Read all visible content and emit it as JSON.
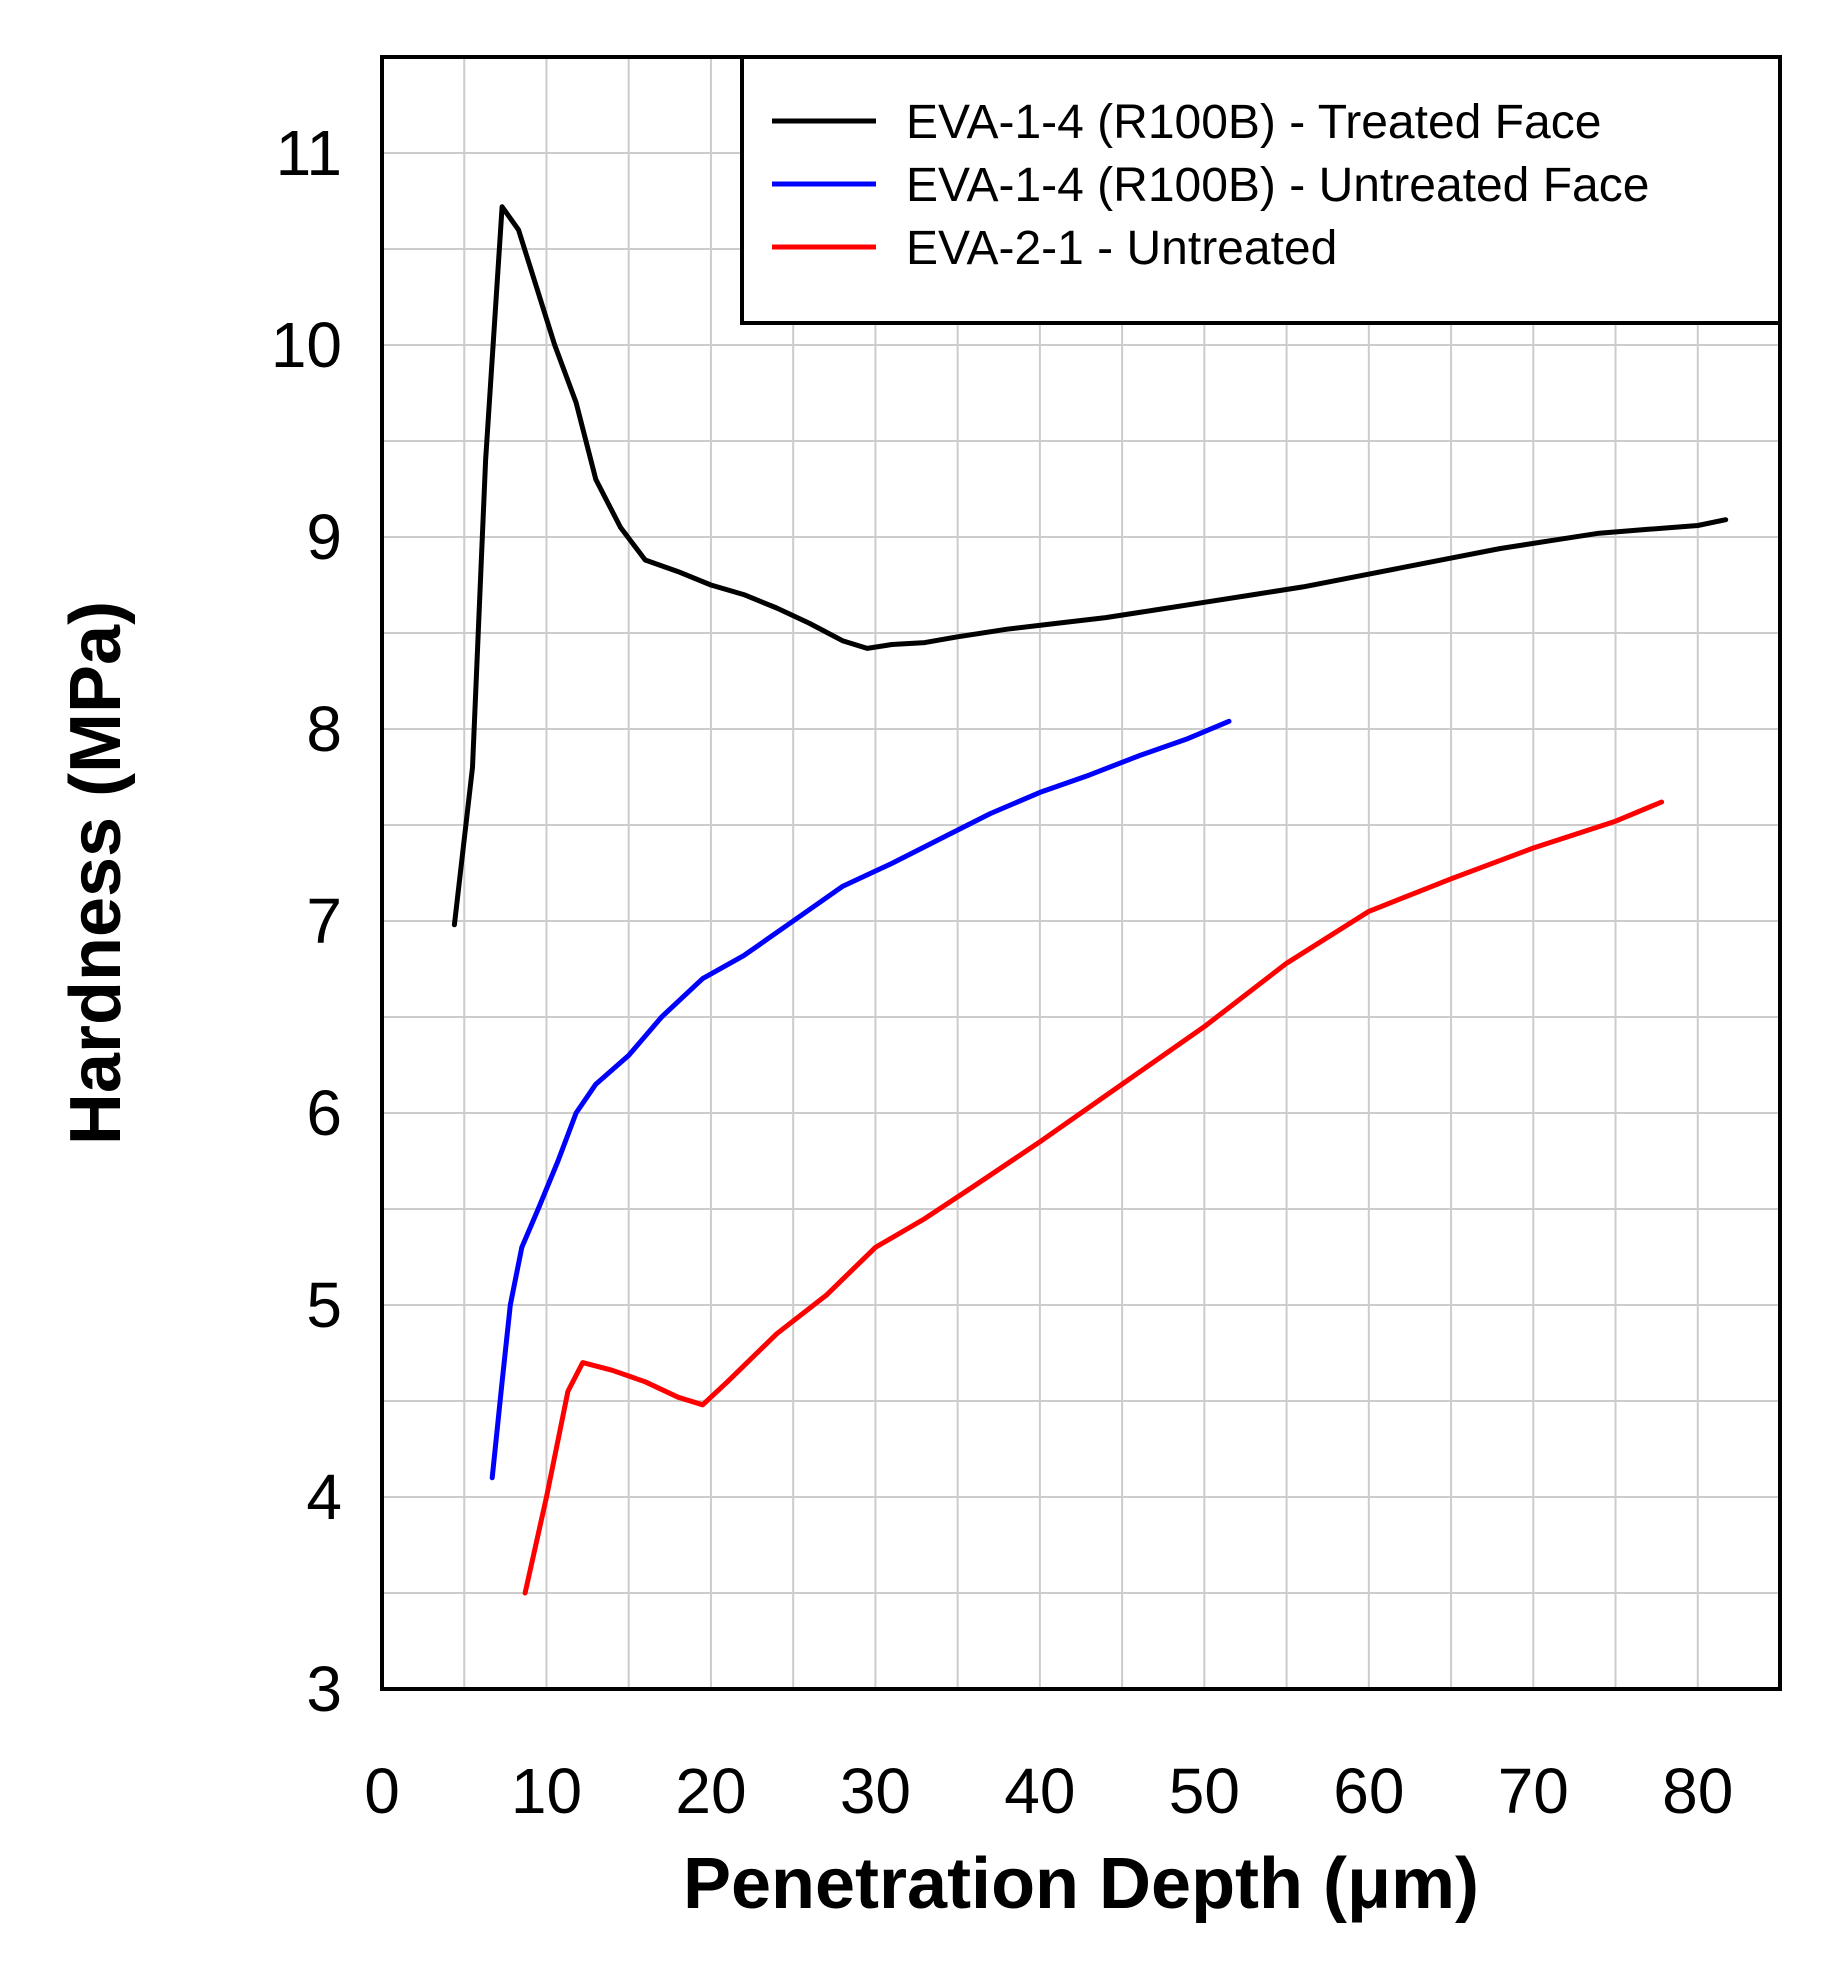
{
  "chart_data": {
    "type": "line",
    "title": "",
    "xlabel": "Penetration Depth  (μm)",
    "ylabel": "Hardness (MPa)",
    "xlim": [
      0,
      85
    ],
    "ylim": [
      3,
      11.5
    ],
    "xticks": [
      0,
      10,
      20,
      30,
      40,
      50,
      60,
      70,
      80
    ],
    "yticks": [
      3,
      4,
      5,
      6,
      7,
      8,
      9,
      10,
      11
    ],
    "x_minor_step": 5,
    "y_minor_step": 0.5,
    "grid": true,
    "legend_position": "top-right",
    "series": [
      {
        "name": "EVA-1-4 (R100B) - Treated Face",
        "color": "#000000",
        "points": [
          [
            4.4,
            6.98
          ],
          [
            5.5,
            7.8
          ],
          [
            6.3,
            9.4
          ],
          [
            7.3,
            10.72
          ],
          [
            8.3,
            10.6
          ],
          [
            9.4,
            10.3
          ],
          [
            10.5,
            10.0
          ],
          [
            11.8,
            9.7
          ],
          [
            13.0,
            9.3
          ],
          [
            14.5,
            9.05
          ],
          [
            16.0,
            8.88
          ],
          [
            18.0,
            8.82
          ],
          [
            20.0,
            8.75
          ],
          [
            22.0,
            8.7
          ],
          [
            24.0,
            8.63
          ],
          [
            26.0,
            8.55
          ],
          [
            28.0,
            8.46
          ],
          [
            29.5,
            8.42
          ],
          [
            31.0,
            8.44
          ],
          [
            33.0,
            8.45
          ],
          [
            35.0,
            8.48
          ],
          [
            38.0,
            8.52
          ],
          [
            41.0,
            8.55
          ],
          [
            44.0,
            8.58
          ],
          [
            47.0,
            8.62
          ],
          [
            50.0,
            8.66
          ],
          [
            53.0,
            8.7
          ],
          [
            56.0,
            8.74
          ],
          [
            59.0,
            8.79
          ],
          [
            62.0,
            8.84
          ],
          [
            65.0,
            8.89
          ],
          [
            68.0,
            8.94
          ],
          [
            71.0,
            8.98
          ],
          [
            74.0,
            9.02
          ],
          [
            77.0,
            9.04
          ],
          [
            80.0,
            9.06
          ],
          [
            81.7,
            9.09
          ]
        ]
      },
      {
        "name": "EVA-1-4 (R100B) - Untreated Face",
        "color": "#0000ff",
        "points": [
          [
            6.7,
            4.1
          ],
          [
            7.3,
            4.6
          ],
          [
            7.8,
            5.0
          ],
          [
            8.5,
            5.3
          ],
          [
            9.5,
            5.5
          ],
          [
            10.7,
            5.75
          ],
          [
            11.8,
            6.0
          ],
          [
            13.0,
            6.15
          ],
          [
            15.0,
            6.3
          ],
          [
            17.0,
            6.5
          ],
          [
            19.5,
            6.7
          ],
          [
            22.0,
            6.82
          ],
          [
            25.0,
            7.0
          ],
          [
            28.0,
            7.18
          ],
          [
            31.0,
            7.3
          ],
          [
            34.0,
            7.43
          ],
          [
            37.0,
            7.56
          ],
          [
            40.0,
            7.67
          ],
          [
            43.0,
            7.76
          ],
          [
            46.0,
            7.86
          ],
          [
            49.0,
            7.95
          ],
          [
            51.5,
            8.04
          ]
        ]
      },
      {
        "name": "EVA-2-1 - Untreated",
        "color": "#ff0000",
        "points": [
          [
            8.7,
            3.5
          ],
          [
            10.0,
            4.0
          ],
          [
            11.3,
            4.55
          ],
          [
            12.2,
            4.7
          ],
          [
            14.0,
            4.66
          ],
          [
            16.0,
            4.6
          ],
          [
            18.0,
            4.52
          ],
          [
            19.5,
            4.48
          ],
          [
            21.0,
            4.6
          ],
          [
            24.0,
            4.85
          ],
          [
            27.0,
            5.05
          ],
          [
            30.0,
            5.3
          ],
          [
            33.0,
            5.45
          ],
          [
            36.0,
            5.62
          ],
          [
            40.0,
            5.85
          ],
          [
            45.0,
            6.15
          ],
          [
            50.0,
            6.45
          ],
          [
            55.0,
            6.78
          ],
          [
            60.0,
            7.05
          ],
          [
            65.0,
            7.22
          ],
          [
            70.0,
            7.38
          ],
          [
            75.0,
            7.52
          ],
          [
            77.8,
            7.62
          ]
        ]
      }
    ]
  }
}
